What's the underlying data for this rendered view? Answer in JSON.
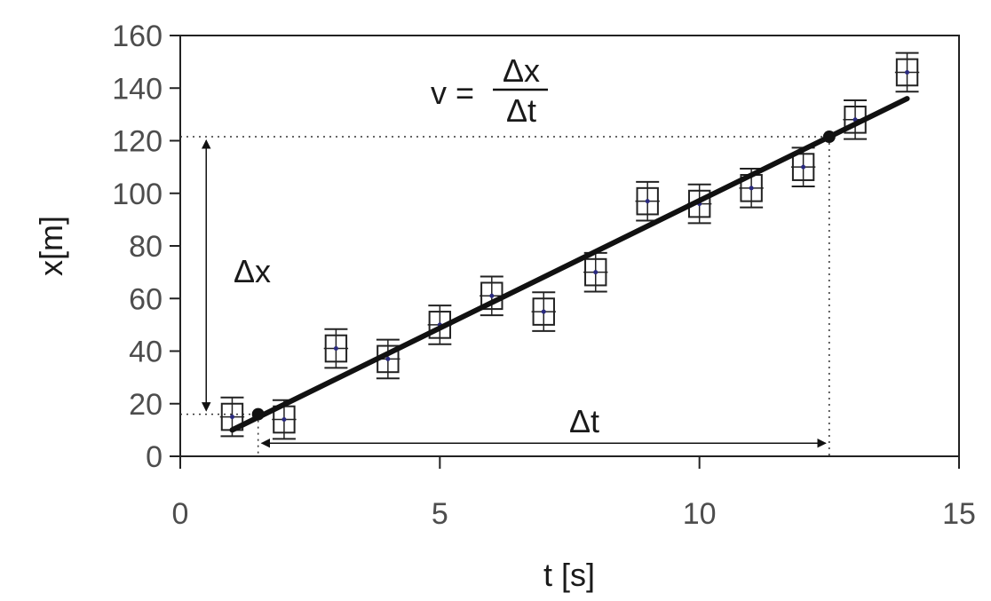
{
  "chart_data": {
    "type": "scatter",
    "xlabel": "t [s]",
    "ylabel": "x[m]",
    "xlim": [
      0,
      15
    ],
    "ylim": [
      0,
      160
    ],
    "x_ticks": [
      "0",
      "5",
      "10",
      "15"
    ],
    "y_ticks": [
      "0",
      "20",
      "40",
      "60",
      "80",
      "100",
      "120",
      "140",
      "160"
    ],
    "grid": false,
    "points": [
      {
        "x": 1,
        "y": 15
      },
      {
        "x": 2,
        "y": 14
      },
      {
        "x": 3,
        "y": 41
      },
      {
        "x": 4,
        "y": 37
      },
      {
        "x": 5,
        "y": 50
      },
      {
        "x": 6,
        "y": 61
      },
      {
        "x": 7,
        "y": 55
      },
      {
        "x": 8,
        "y": 70
      },
      {
        "x": 9,
        "y": 97
      },
      {
        "x": 10,
        "y": 96
      },
      {
        "x": 11,
        "y": 102
      },
      {
        "x": 12,
        "y": 110
      },
      {
        "x": 13,
        "y": 128
      },
      {
        "x": 14,
        "y": 146
      }
    ],
    "error": {
      "x": 0.2,
      "y": 5
    },
    "fit_line": {
      "x": [
        1,
        14
      ],
      "y": [
        10,
        136
      ]
    },
    "marked_points": [
      {
        "x": 1.5,
        "y": 16
      },
      {
        "x": 12.5,
        "y": 121.5
      }
    ],
    "annotations": {
      "formula_lhs": "v =",
      "formula_num": "Δx",
      "formula_den": "Δt",
      "delta_x": "Δx",
      "delta_t": "Δt"
    },
    "colors": {
      "point": "#2a2a80",
      "line": "#111111",
      "box": "#222222"
    }
  }
}
